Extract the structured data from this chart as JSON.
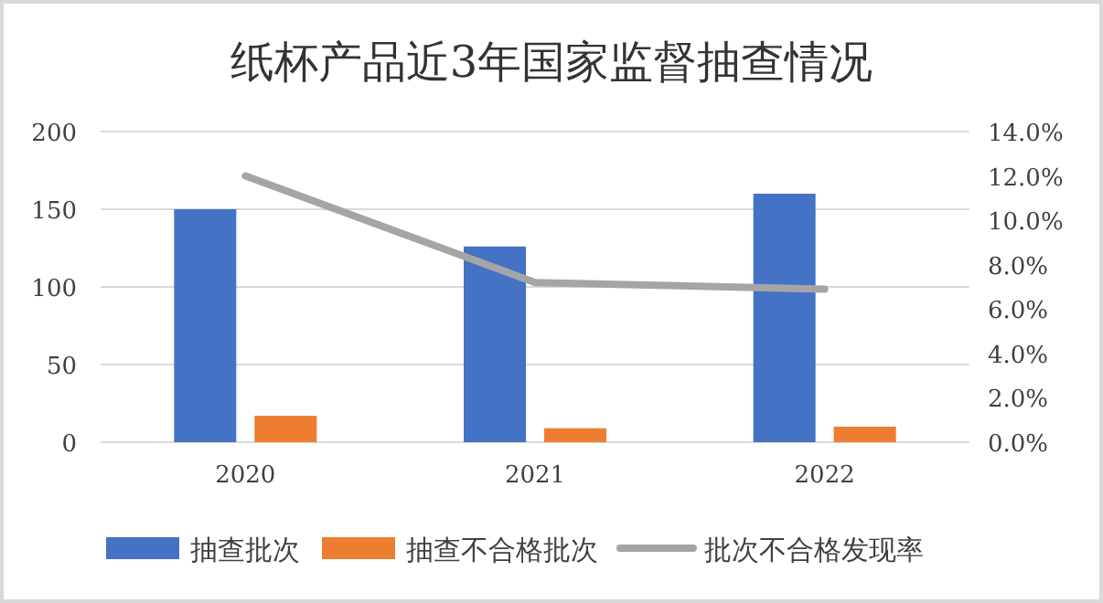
{
  "chart_data": {
    "type": "bar",
    "title": "纸杯产品近3年国家监督抽查情况",
    "categories": [
      "2020",
      "2021",
      "2022"
    ],
    "series": [
      {
        "name": "抽查批次",
        "color": "#4472c4",
        "values": [
          150,
          126,
          160
        ]
      },
      {
        "name": "抽查不合格批次",
        "color": "#ed7d31",
        "values": [
          17,
          9,
          10
        ]
      },
      {
        "name": "批次不合格发现率",
        "color": "#a5a5a5",
        "type": "line",
        "axis": "y2",
        "values": [
          12.0,
          7.2,
          6.9
        ]
      }
    ],
    "ylim": [
      0,
      200
    ],
    "yticks": [
      0,
      50,
      100,
      150,
      200
    ],
    "y2lim": [
      0,
      14
    ],
    "y2ticks": [
      {
        "value": 0,
        "label": "0.0%"
      },
      {
        "value": 2,
        "label": "2.0%"
      },
      {
        "value": 4,
        "label": "4.0%"
      },
      {
        "value": 6,
        "label": "6.0%"
      },
      {
        "value": 8,
        "label": "8.0%"
      },
      {
        "value": 10,
        "label": "10.0%"
      },
      {
        "value": 12,
        "label": "12.0%"
      },
      {
        "value": 14,
        "label": "14.0%"
      }
    ],
    "grid": "y",
    "legend": "bottom",
    "marker": "none"
  }
}
